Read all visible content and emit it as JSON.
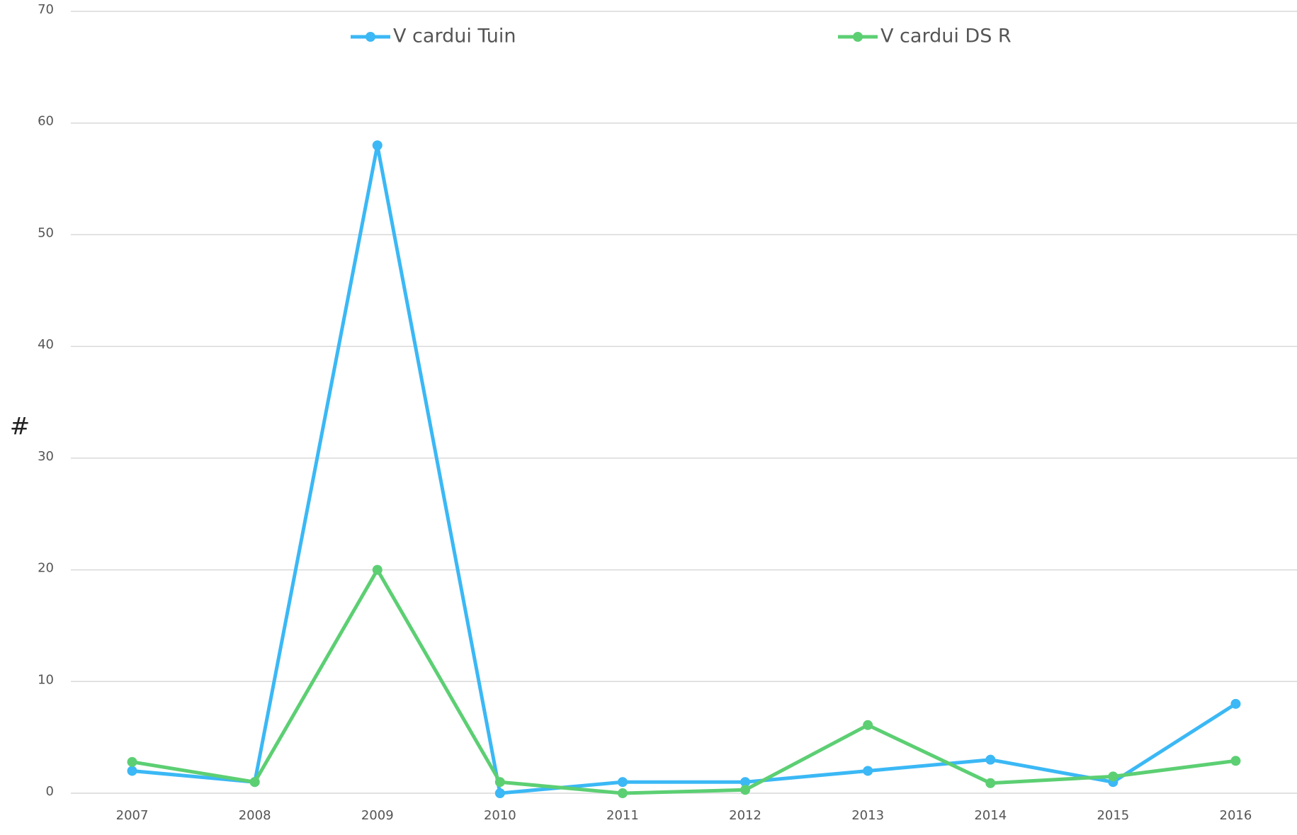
{
  "chart_data": {
    "type": "line",
    "y_label": "#",
    "categories": [
      "2007",
      "2008",
      "2009",
      "2010",
      "2011",
      "2012",
      "2013",
      "2014",
      "2015",
      "2016"
    ],
    "series": [
      {
        "name": "V cardui Tuin",
        "color": "#3bb8f5",
        "values": [
          2,
          1,
          58,
          0,
          1,
          1,
          2,
          3,
          1,
          8
        ]
      },
      {
        "name": "V cardui DS R",
        "color": "#5ccf73",
        "values": [
          2.8,
          1,
          20,
          1,
          0,
          0.3,
          6.1,
          0.9,
          1.5,
          2.9
        ]
      }
    ],
    "ylim": [
      0,
      70
    ],
    "yticks": [
      0,
      10,
      20,
      30,
      40,
      50,
      60,
      70
    ],
    "grid": true,
    "legend": "top"
  }
}
